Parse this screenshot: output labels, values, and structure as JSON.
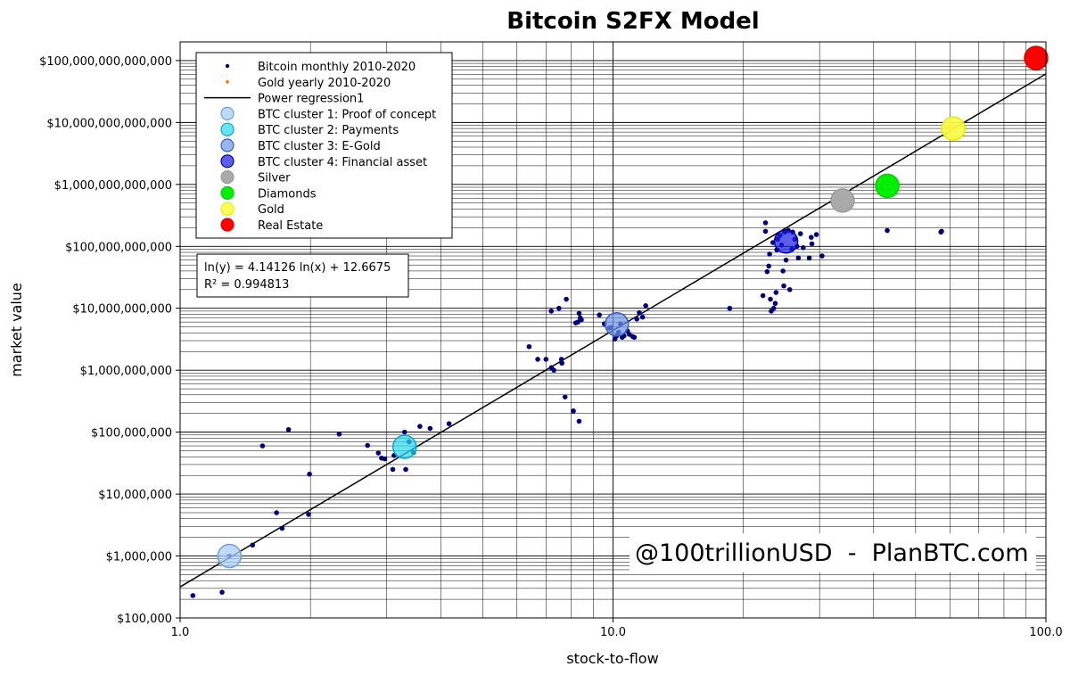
{
  "chart_data": {
    "type": "scatter",
    "title": "Bitcoin S2FX Model",
    "xlabel": "stock-to-flow",
    "ylabel": "market value",
    "x_scale": "log",
    "y_scale": "log",
    "xlim": [
      1.0,
      100.0
    ],
    "ylim": [
      100000,
      200000000000000
    ],
    "grid": true,
    "legend_position": "top-left",
    "x_ticks": [
      {
        "value": 1.0,
        "label": "1.0"
      },
      {
        "value": 10.0,
        "label": "10.0"
      },
      {
        "value": 100.0,
        "label": "100.0"
      }
    ],
    "y_ticks": [
      {
        "value": 100000,
        "label": "$100,000"
      },
      {
        "value": 1000000,
        "label": "$1,000,000"
      },
      {
        "value": 10000000,
        "label": "$10,000,000"
      },
      {
        "value": 100000000,
        "label": "$100,000,000"
      },
      {
        "value": 1000000000,
        "label": "$1,000,000,000"
      },
      {
        "value": 10000000000,
        "label": "$10,000,000,000"
      },
      {
        "value": 100000000000,
        "label": "$100,000,000,000"
      },
      {
        "value": 1000000000000,
        "label": "$1,000,000,000,000"
      },
      {
        "value": 10000000000000,
        "label": "$10,000,000,000,000"
      },
      {
        "value": 100000000000000,
        "label": "$100,000,000,000,000"
      }
    ],
    "series": [
      {
        "name": "Bitcoin monthly 2010-2020",
        "marker": "dot",
        "color": "#00007f",
        "points": [
          [
            1.07,
            230000
          ],
          [
            1.25,
            260000
          ],
          [
            1.3,
            1000000
          ],
          [
            1.47,
            1500000
          ],
          [
            1.55,
            60000000
          ],
          [
            1.67,
            5000000
          ],
          [
            1.72,
            2800000
          ],
          [
            1.78,
            110000000
          ],
          [
            1.98,
            4700000
          ],
          [
            1.99,
            21000000
          ],
          [
            2.33,
            93000000
          ],
          [
            2.71,
            61000000
          ],
          [
            2.87,
            46000000
          ],
          [
            2.92,
            38000000
          ],
          [
            2.97,
            37000000
          ],
          [
            3.1,
            25000000
          ],
          [
            3.12,
            42000000
          ],
          [
            3.3,
            100000000
          ],
          [
            3.32,
            25000000
          ],
          [
            3.38,
            70000000
          ],
          [
            3.46,
            47000000
          ],
          [
            3.58,
            124000000
          ],
          [
            3.78,
            115000000
          ],
          [
            4.18,
            137000000
          ],
          [
            6.4,
            2400000000
          ],
          [
            6.7,
            1500000000
          ],
          [
            7.0,
            1500000000
          ],
          [
            7.2,
            1100000000
          ],
          [
            7.3,
            1000000000
          ],
          [
            7.2,
            9000000000
          ],
          [
            7.6,
            1500000000
          ],
          [
            7.62,
            1300000000
          ],
          [
            7.5,
            10000000000
          ],
          [
            7.8,
            14000000000
          ],
          [
            7.75,
            370000000
          ],
          [
            8.1,
            220000000
          ],
          [
            8.35,
            150000000
          ],
          [
            8.2,
            5800000000
          ],
          [
            8.3,
            6000000000
          ],
          [
            8.35,
            8300000000
          ],
          [
            8.4,
            7000000000
          ],
          [
            8.45,
            6500000000
          ],
          [
            9.3,
            7800000000
          ],
          [
            9.55,
            5600000000
          ],
          [
            9.8,
            4800000000
          ],
          [
            9.9,
            4900000000
          ],
          [
            10.1,
            3200000000
          ],
          [
            10.2,
            3600000000
          ],
          [
            10.3,
            4100000000
          ],
          [
            10.4,
            5600000000
          ],
          [
            10.5,
            3400000000
          ],
          [
            10.6,
            3600000000
          ],
          [
            10.8,
            4300000000
          ],
          [
            10.9,
            3800000000
          ],
          [
            11.1,
            3500000000
          ],
          [
            11.2,
            3400000000
          ],
          [
            11.35,
            6700000000
          ],
          [
            11.5,
            8500000000
          ],
          [
            11.7,
            7200000000
          ],
          [
            11.9,
            11000000000
          ],
          [
            18.6,
            10000000000
          ],
          [
            22.2,
            16000000000
          ],
          [
            22.5,
            240000000000
          ],
          [
            22.5,
            175000000000
          ],
          [
            22.7,
            39000000000
          ],
          [
            22.9,
            48000000000
          ],
          [
            23.0,
            75000000000
          ],
          [
            23.1,
            14000000000
          ],
          [
            23.2,
            9000000000
          ],
          [
            23.4,
            115000000000
          ],
          [
            23.5,
            10000000000
          ],
          [
            23.7,
            12000000000
          ],
          [
            23.8,
            18000000000
          ],
          [
            23.9,
            88000000000
          ],
          [
            24.0,
            130000000000
          ],
          [
            24.3,
            150000000000
          ],
          [
            24.5,
            105000000000
          ],
          [
            24.7,
            40000000000
          ],
          [
            24.8,
            23000000000
          ],
          [
            24.9,
            170000000000
          ],
          [
            25.1,
            60000000000
          ],
          [
            25.4,
            180000000000
          ],
          [
            25.6,
            20000000000
          ],
          [
            25.9,
            90000000000
          ],
          [
            26.0,
            170000000000
          ],
          [
            26.3,
            130000000000
          ],
          [
            26.6,
            100000000000
          ],
          [
            26.8,
            65000000000
          ],
          [
            27.1,
            160000000000
          ],
          [
            27.5,
            95000000000
          ],
          [
            28.4,
            65000000000
          ],
          [
            28.7,
            140000000000
          ],
          [
            28.8,
            110000000000
          ],
          [
            29.5,
            155000000000
          ],
          [
            30.4,
            70000000000
          ],
          [
            43.0,
            180000000000
          ],
          [
            57.2,
            170000000000
          ],
          [
            57.4,
            175000000000
          ]
        ]
      },
      {
        "name": "Gold yearly 2010-2020",
        "marker": "dot",
        "color": "#ff6600",
        "points": [
          [
            58.8,
            8200000000000
          ],
          [
            60.0,
            8400000000000
          ],
          [
            61.2,
            8000000000000
          ]
        ]
      },
      {
        "name": "Power regression1",
        "marker": "line",
        "color": "#000000",
        "equation": {
          "slope": 4.14126,
          "intercept": 12.6675
        },
        "x_range": [
          1.0,
          100.0
        ]
      },
      {
        "name": "BTC cluster 1: Proof of concept",
        "marker": "circle",
        "color": "#a9cef8",
        "points": [
          [
            1.3,
            1000000
          ]
        ]
      },
      {
        "name": "BTC cluster 2: Payments",
        "marker": "circle",
        "color": "#29d9ef",
        "points": [
          [
            3.3,
            58000000
          ]
        ]
      },
      {
        "name": "BTC cluster 3: E-Gold",
        "marker": "circle",
        "color": "#6e96ea",
        "points": [
          [
            10.2,
            5500000000
          ]
        ]
      },
      {
        "name": "BTC cluster 4: Financial asset",
        "marker": "circle",
        "color": "#1a1ae6",
        "points": [
          [
            25.1,
            120000000000
          ]
        ]
      },
      {
        "name": "Silver",
        "marker": "circle",
        "color": "#aaaaaa",
        "points": [
          [
            33.9,
            550000000000
          ]
        ]
      },
      {
        "name": "Diamonds",
        "marker": "circle",
        "color": "#00ee00",
        "points": [
          [
            43.0,
            950000000000
          ]
        ]
      },
      {
        "name": "Gold",
        "marker": "circle",
        "color": "#ffff44",
        "points": [
          [
            61.1,
            8000000000000
          ]
        ]
      },
      {
        "name": "Real Estate",
        "marker": "circle",
        "color": "#ff0000",
        "points": [
          [
            94.9,
            110000000000000
          ]
        ]
      }
    ],
    "annotations": {
      "equation_line1": "ln(y) = 4.14126 ln(x) + 12.6675",
      "equation_line2": "R² = 0.994813",
      "watermark": "@100trillionUSD  -  PlanBTC.com"
    }
  }
}
